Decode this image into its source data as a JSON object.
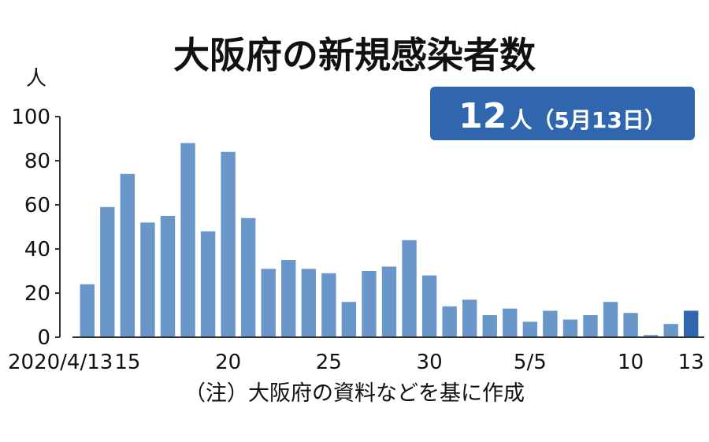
{
  "chart_data": {
    "type": "bar",
    "title": "大阪府の新規感染者数",
    "y_unit": "人",
    "ylim": [
      0,
      100
    ],
    "y_ticks": [
      "0",
      "20",
      "40",
      "60",
      "80",
      "100"
    ],
    "x_ticks": [
      {
        "label": "2020/4/13",
        "date": "2020/4/13"
      },
      {
        "label": "15",
        "date": "2020/4/15"
      },
      {
        "label": "20",
        "date": "2020/4/20"
      },
      {
        "label": "25",
        "date": "2020/4/25"
      },
      {
        "label": "30",
        "date": "2020/4/30"
      },
      {
        "label": "5/5",
        "date": "2020/5/5"
      },
      {
        "label": "10",
        "date": "2020/5/10"
      },
      {
        "label": "13",
        "date": "2020/5/13"
      }
    ],
    "dates": [
      "2020/4/13",
      "2020/4/14",
      "2020/4/15",
      "2020/4/16",
      "2020/4/17",
      "2020/4/18",
      "2020/4/19",
      "2020/4/20",
      "2020/4/21",
      "2020/4/22",
      "2020/4/23",
      "2020/4/24",
      "2020/4/25",
      "2020/4/26",
      "2020/4/27",
      "2020/4/28",
      "2020/4/29",
      "2020/4/30",
      "2020/5/1",
      "2020/5/2",
      "2020/5/3",
      "2020/5/4",
      "2020/5/5",
      "2020/5/6",
      "2020/5/7",
      "2020/5/8",
      "2020/5/9",
      "2020/5/10",
      "2020/5/11",
      "2020/5/12",
      "2020/5/13"
    ],
    "values": [
      24,
      59,
      74,
      52,
      55,
      88,
      48,
      84,
      54,
      31,
      35,
      31,
      29,
      16,
      30,
      32,
      44,
      28,
      14,
      17,
      10,
      13,
      7,
      12,
      8,
      10,
      16,
      11,
      1,
      6,
      12
    ],
    "grid": false,
    "colors": {
      "bar": "#6a97c9",
      "highlight": "#2f66ad",
      "callout_bg": "#2f66ad"
    }
  },
  "callout": {
    "number": "12",
    "rest": "人（5月13日）"
  },
  "note": "（注）大阪府の資料などを基に作成"
}
